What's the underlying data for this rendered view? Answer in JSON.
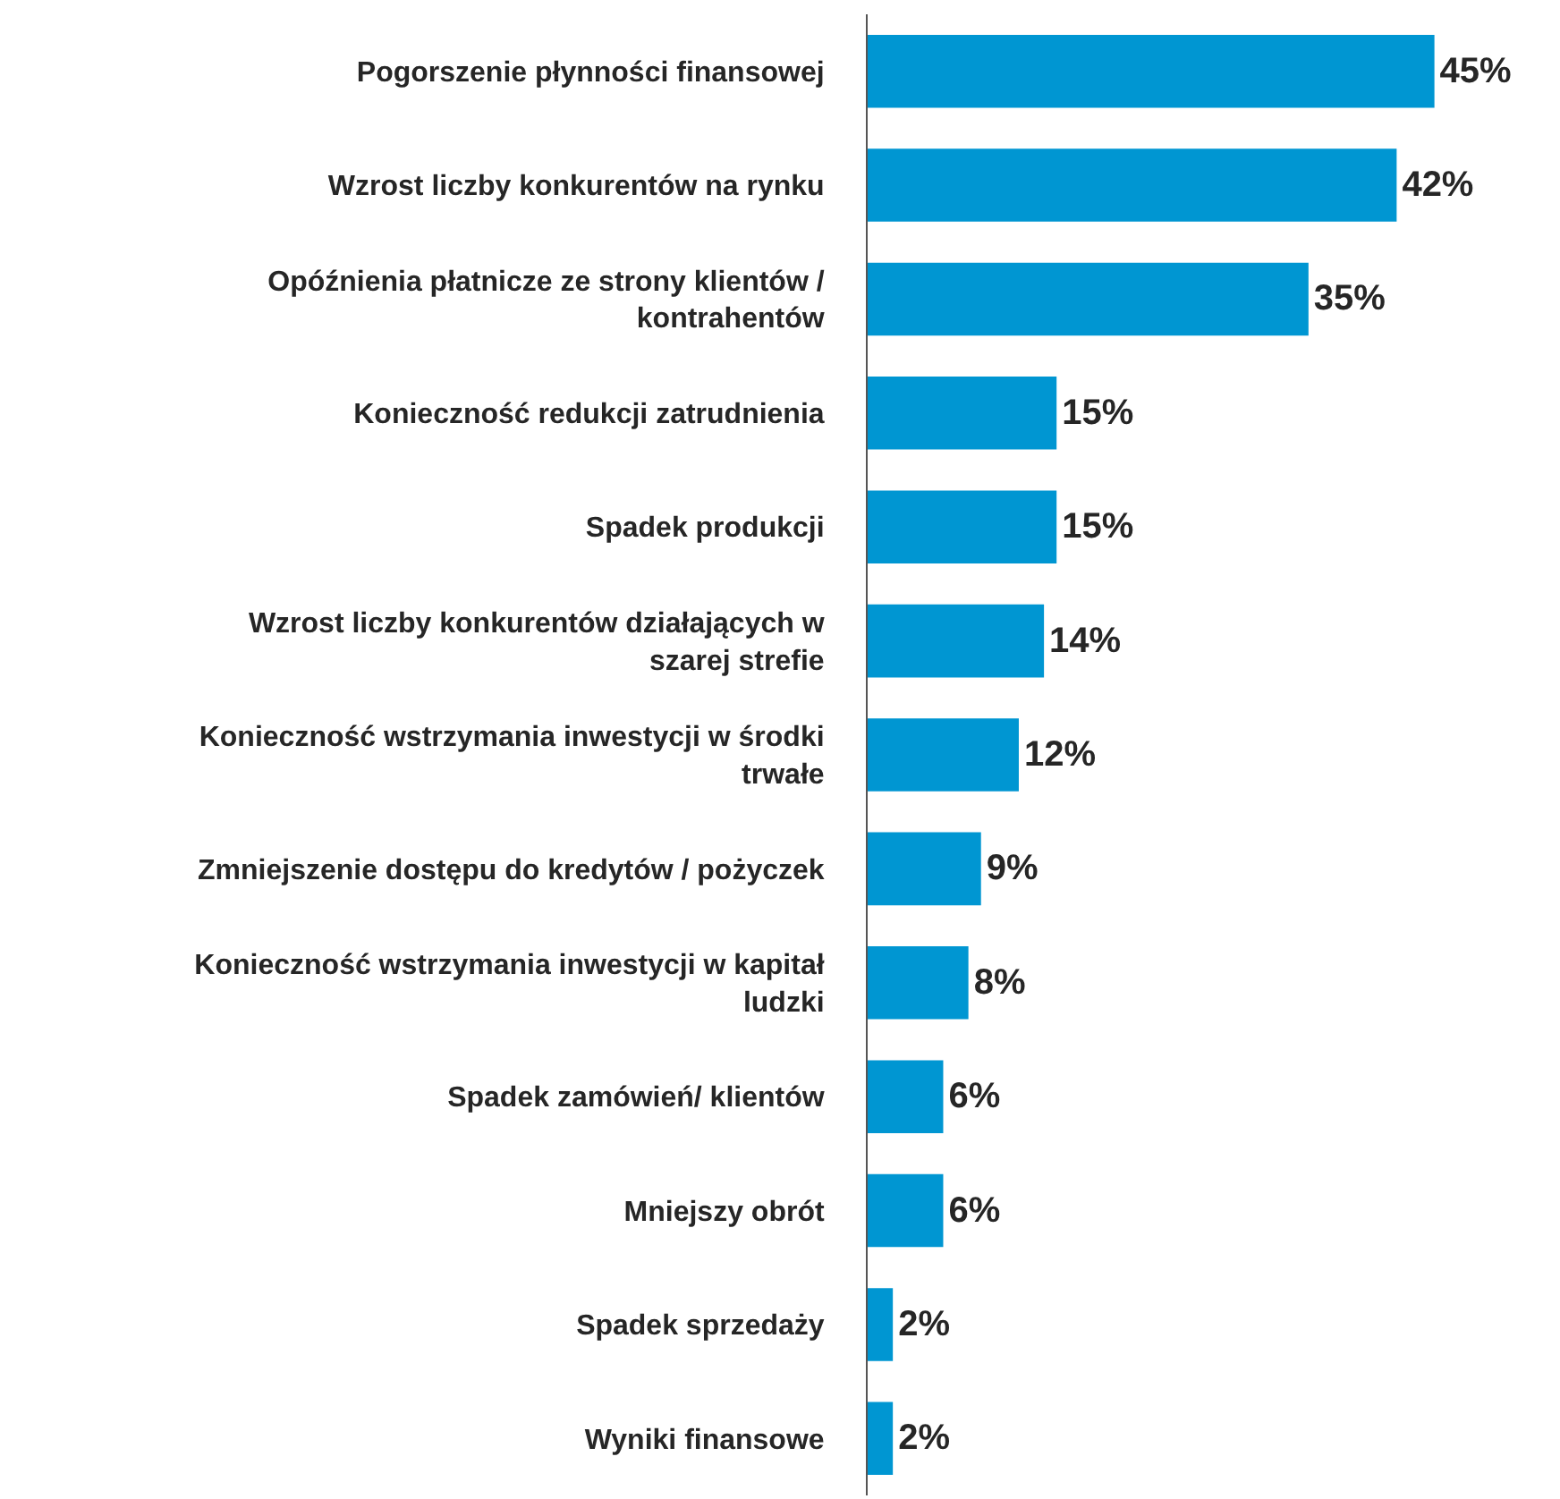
{
  "chart_data": {
    "type": "bar",
    "orientation": "horizontal",
    "categories": [
      "Pogorszenie płynności finansowej",
      "Wzrost liczby konkurentów na rynku",
      "Opóźnienia płatnicze ze strony klientów /\nkontrahentów",
      "Konieczność redukcji zatrudnienia",
      "Spadek produkcji",
      "Wzrost liczby konkurentów działających w\nszarej strefie",
      "Konieczność wstrzymania inwestycji w środki\ntrwałe",
      "Zmniejszenie dostępu do kredytów / pożyczek",
      "Konieczność wstrzymania inwestycji w kapitał\nludzki",
      "Spadek zamówień/ klientów",
      "Mniejszy obrót",
      "Spadek sprzedaży",
      "Wyniki finansowe"
    ],
    "values": [
      45,
      42,
      35,
      15,
      15,
      14,
      12,
      9,
      8,
      6,
      6,
      2,
      2
    ],
    "value_labels": [
      "45%",
      "42%",
      "35%",
      "15%",
      "15%",
      "14%",
      "12%",
      "9%",
      "8%",
      "6%",
      "6%",
      "2%",
      "2%"
    ],
    "color": "#0096d2",
    "legend": false
  }
}
